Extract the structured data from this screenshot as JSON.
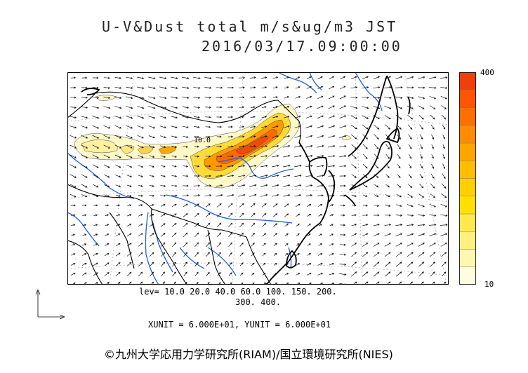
{
  "title": {
    "line1": "U-V&Dust total m/s&ug/m3 JST",
    "line2": "2016/03/17.09:00:00"
  },
  "map": {
    "contour_label": "10.0"
  },
  "colorbar": {
    "max_label": "400",
    "min_label": "10",
    "colors": [
      "#fffde0",
      "#fff7b0",
      "#fff080",
      "#ffe94d",
      "#ffe000",
      "#ffd000",
      "#ffbd00",
      "#ffa500",
      "#ff8c00",
      "#ff6f00",
      "#ff5500",
      "#f03f0a"
    ]
  },
  "legend": {
    "levels_line1": "lev= 10.0 20.0 40.0 60.0 100. 150. 200.",
    "levels_line2": "300. 400.",
    "units": "XUNIT = 6.000E+01, YUNIT = 6.000E+01"
  },
  "credit": "©九州大学応用力学研究所(RIAM)/国立環境研究所(NIES)",
  "colors": {
    "coast": "#000000",
    "river": "#1e5fe6",
    "border": "#000000",
    "arrow": "#111111"
  }
}
